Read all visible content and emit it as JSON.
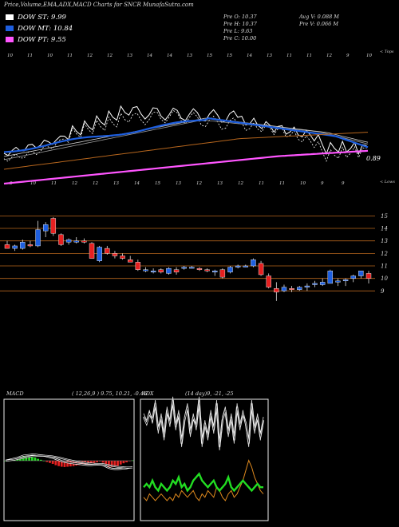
{
  "header": {
    "title": "Price,Volume,EMA,ADX,MACD Charts for SNCR MunafaSutra.com",
    "legend": [
      {
        "label": "DOW ST: 9.99",
        "color": "#ffffff"
      },
      {
        "label": "DOW MT: 10.84",
        "color": "#1e5fe0"
      },
      {
        "label": "DOW PT: 9.55",
        "color": "#ff55ff"
      }
    ],
    "ohlc_col1": [
      "Pre  O: 10.37",
      "Pre  H: 10.37",
      "Pre  L: 9.63",
      "Pre  C: 10.00"
    ],
    "ohlc_col2": [
      "Avg V: 0.088  M",
      "Pre  V: 0.066  M"
    ]
  },
  "top_chart": {
    "top_labels": [
      "10",
      "11",
      "10",
      "11",
      "12",
      "12",
      "13",
      "14",
      "14",
      "13",
      "15",
      "15",
      "14",
      "13",
      "11",
      "11",
      "12",
      "9",
      "10"
    ],
    "bottom_labels": [
      "8",
      "10",
      "11",
      "12",
      "12",
      "13",
      "14",
      "15",
      "13",
      "12",
      "13",
      "12",
      "11",
      "11",
      "10",
      "9",
      "9"
    ],
    "right_top": "< Tops",
    "right_bottom": "< Lows",
    "last_value": "0.89"
  },
  "chart_data": [
    {
      "type": "candlestick",
      "title": "",
      "y_ticks": [
        15,
        14,
        13,
        12,
        11,
        10,
        9
      ],
      "ylim": [
        8,
        16.3
      ],
      "candles": [
        {
          "o": 12.7,
          "h": 13.0,
          "l": 12.4,
          "c": 12.4
        },
        {
          "o": 12.4,
          "h": 12.7,
          "l": 12.2,
          "c": 12.6
        },
        {
          "o": 12.4,
          "h": 13.1,
          "l": 12.3,
          "c": 12.9
        },
        {
          "o": 12.7,
          "h": 13.0,
          "l": 12.5,
          "c": 12.6
        },
        {
          "o": 12.6,
          "h": 14.6,
          "l": 12.5,
          "c": 13.9
        },
        {
          "o": 13.8,
          "h": 14.5,
          "l": 13.3,
          "c": 14.3
        },
        {
          "o": 14.8,
          "h": 14.9,
          "l": 13.4,
          "c": 13.6
        },
        {
          "o": 13.5,
          "h": 13.6,
          "l": 12.6,
          "c": 12.7
        },
        {
          "o": 12.9,
          "h": 13.2,
          "l": 12.7,
          "c": 13.1
        },
        {
          "o": 12.9,
          "h": 13.3,
          "l": 12.8,
          "c": 13.0
        },
        {
          "o": 13.0,
          "h": 13.2,
          "l": 12.8,
          "c": 12.9
        },
        {
          "o": 12.8,
          "h": 12.9,
          "l": 11.6,
          "c": 11.6
        },
        {
          "o": 11.4,
          "h": 12.6,
          "l": 11.3,
          "c": 12.5
        },
        {
          "o": 12.4,
          "h": 12.6,
          "l": 11.9,
          "c": 12.0
        },
        {
          "o": 12.0,
          "h": 12.2,
          "l": 11.6,
          "c": 11.8
        },
        {
          "o": 11.8,
          "h": 12.0,
          "l": 11.5,
          "c": 11.6
        },
        {
          "o": 11.5,
          "h": 11.8,
          "l": 11.3,
          "c": 11.3
        },
        {
          "o": 11.3,
          "h": 11.5,
          "l": 10.6,
          "c": 10.7
        },
        {
          "o": 10.7,
          "h": 10.9,
          "l": 10.5,
          "c": 10.7
        },
        {
          "o": 10.5,
          "h": 10.8,
          "l": 10.4,
          "c": 10.6
        },
        {
          "o": 10.7,
          "h": 10.8,
          "l": 10.4,
          "c": 10.5
        },
        {
          "o": 10.4,
          "h": 10.9,
          "l": 10.3,
          "c": 10.8
        },
        {
          "o": 10.7,
          "h": 10.9,
          "l": 10.3,
          "c": 10.5
        },
        {
          "o": 10.8,
          "h": 11.0,
          "l": 10.7,
          "c": 10.9
        },
        {
          "o": 10.9,
          "h": 11.0,
          "l": 10.8,
          "c": 10.9
        },
        {
          "o": 10.8,
          "h": 10.9,
          "l": 10.6,
          "c": 10.7
        },
        {
          "o": 10.7,
          "h": 10.8,
          "l": 10.5,
          "c": 10.6
        },
        {
          "o": 10.5,
          "h": 10.7,
          "l": 10.2,
          "c": 10.6
        },
        {
          "o": 10.7,
          "h": 10.8,
          "l": 10.0,
          "c": 10.1
        },
        {
          "o": 10.5,
          "h": 11.0,
          "l": 10.4,
          "c": 10.9
        },
        {
          "o": 10.9,
          "h": 11.1,
          "l": 10.8,
          "c": 11.0
        },
        {
          "o": 11.0,
          "h": 11.1,
          "l": 10.9,
          "c": 11.0
        },
        {
          "o": 11.0,
          "h": 11.6,
          "l": 10.9,
          "c": 11.5
        },
        {
          "o": 11.2,
          "h": 11.4,
          "l": 10.2,
          "c": 10.3
        },
        {
          "o": 10.2,
          "h": 10.4,
          "l": 9.2,
          "c": 9.3
        },
        {
          "o": 9.2,
          "h": 9.7,
          "l": 8.2,
          "c": 8.9
        },
        {
          "o": 9.0,
          "h": 9.5,
          "l": 8.9,
          "c": 9.3
        },
        {
          "o": 9.2,
          "h": 9.4,
          "l": 8.9,
          "c": 9.1
        },
        {
          "o": 9.1,
          "h": 9.4,
          "l": 9.0,
          "c": 9.3
        },
        {
          "o": 9.3,
          "h": 9.6,
          "l": 9.0,
          "c": 9.4
        },
        {
          "o": 9.5,
          "h": 9.8,
          "l": 9.3,
          "c": 9.6
        },
        {
          "o": 9.5,
          "h": 10.0,
          "l": 9.4,
          "c": 9.7
        },
        {
          "o": 9.6,
          "h": 10.7,
          "l": 9.6,
          "c": 10.6
        },
        {
          "o": 9.7,
          "h": 10.0,
          "l": 9.4,
          "c": 9.8
        },
        {
          "o": 9.8,
          "h": 10.0,
          "l": 9.4,
          "c": 9.9
        },
        {
          "o": 10.0,
          "h": 10.3,
          "l": 9.7,
          "c": 10.2
        },
        {
          "o": 10.2,
          "h": 10.6,
          "l": 10.0,
          "c": 10.6
        },
        {
          "o": 10.4,
          "h": 10.6,
          "l": 9.6,
          "c": 10.0
        }
      ]
    },
    {
      "type": "line",
      "title": "MACD",
      "params": "( 12,26,9 ) 9.75, 10.21, -0.46",
      "macd": [
        0,
        0.05,
        0.1,
        0.15,
        0.2,
        0.28,
        0.35,
        0.38,
        0.4,
        0.42,
        0.43,
        0.4,
        0.38,
        0.35,
        0.3,
        0.25,
        0.2,
        0.12,
        0.05,
        -0.02,
        -0.08,
        -0.12,
        -0.15,
        -0.18,
        -0.2,
        -0.22,
        -0.25,
        -0.28,
        -0.3,
        -0.3,
        -0.28,
        -0.27,
        -0.25,
        -0.3,
        -0.4,
        -0.5,
        -0.55,
        -0.58,
        -0.58,
        -0.56,
        -0.54,
        -0.52,
        -0.48,
        -0.46
      ],
      "signal": [
        0,
        0.02,
        0.05,
        0.08,
        0.12,
        0.16,
        0.2,
        0.24,
        0.28,
        0.31,
        0.33,
        0.34,
        0.35,
        0.35,
        0.34,
        0.32,
        0.3,
        0.26,
        0.22,
        0.17,
        0.12,
        0.07,
        0.03,
        -0.01,
        -0.05,
        -0.08,
        -0.11,
        -0.14,
        -0.17,
        -0.19,
        -0.21,
        -0.22,
        -0.23,
        -0.24,
        -0.27,
        -0.31,
        -0.35,
        -0.39,
        -0.42,
        -0.44,
        -0.46,
        -0.47,
        -0.47,
        -0.47
      ]
    },
    {
      "type": "line",
      "title": "ADX",
      "params": "(14 day)9, -21, -25",
      "adx_upper": [
        30,
        28,
        31,
        29,
        34,
        26,
        30,
        24,
        32,
        28,
        35,
        27,
        31,
        22,
        29,
        33,
        25,
        30,
        27,
        35,
        22,
        28,
        24,
        31,
        26,
        34,
        21,
        29,
        32,
        25,
        30,
        23,
        33,
        27,
        31,
        28,
        22,
        34,
        26,
        30,
        24,
        29
      ],
      "adx_upper2": [
        31,
        29,
        32,
        28,
        35,
        25,
        31,
        23,
        33,
        27,
        36,
        26,
        32,
        21,
        30,
        34,
        24,
        31,
        26,
        36,
        21,
        29,
        23,
        32,
        25,
        35,
        20,
        30,
        33,
        24,
        31,
        22,
        34,
        26,
        32,
        27,
        21,
        35,
        25,
        31,
        23,
        30
      ],
      "plus_di": [
        9,
        10,
        9,
        11,
        9,
        8,
        10,
        9,
        8,
        9,
        11,
        10,
        12,
        9,
        10,
        8,
        9,
        11,
        12,
        13,
        11,
        10,
        9,
        10,
        11,
        9,
        8,
        9,
        10,
        12,
        9,
        8,
        9,
        10,
        11,
        10,
        9,
        8,
        9,
        10,
        9,
        9
      ],
      "minus_di": [
        6,
        5,
        7,
        6,
        5,
        6,
        7,
        6,
        5,
        6,
        5,
        7,
        6,
        8,
        7,
        6,
        7,
        8,
        6,
        5,
        7,
        6,
        8,
        7,
        6,
        9,
        8,
        6,
        5,
        7,
        8,
        6,
        7,
        9,
        11,
        14,
        17,
        15,
        12,
        10,
        8,
        7
      ]
    }
  ]
}
